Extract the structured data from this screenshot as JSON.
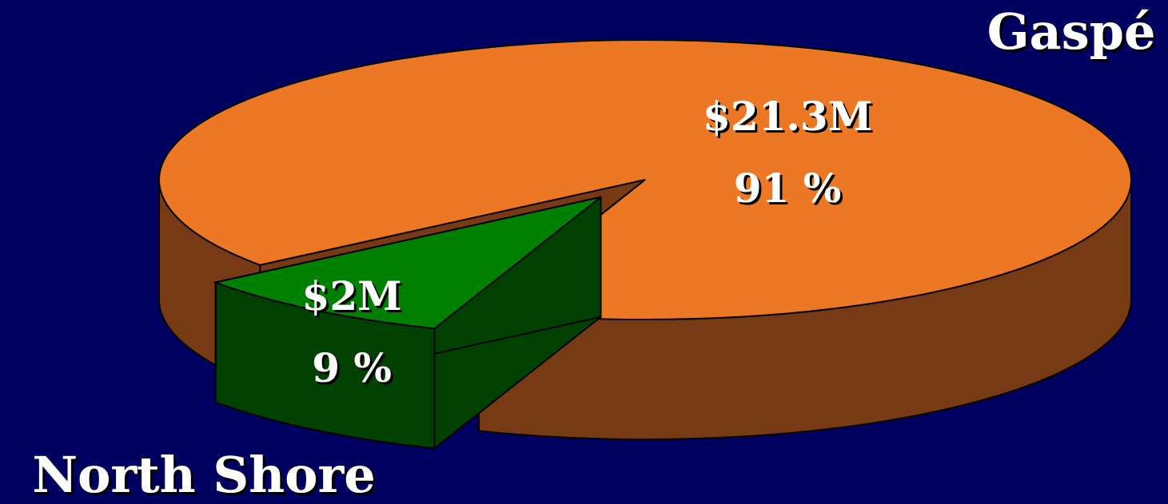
{
  "chart_data": {
    "type": "pie3d",
    "categories": [
      "Gaspé",
      "North Shore"
    ],
    "values": [
      91,
      9
    ],
    "value_labels": [
      "91 %",
      "9 %"
    ],
    "amounts": [
      21300000,
      2000000
    ],
    "amount_labels": [
      "$21.3M",
      "$2M"
    ],
    "colors": [
      "#ec7725",
      "#008000"
    ],
    "side_colors": [
      "#773a14",
      "#004000"
    ]
  }
}
